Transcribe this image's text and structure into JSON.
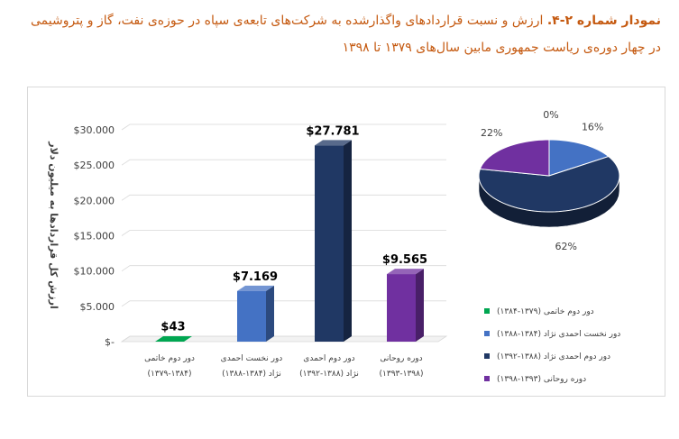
{
  "caption": {
    "label": "نمودار شماره ۲-۴.",
    "text": "ارزش و نسبت قراردادهای واگذارشده به شرکت‌های تابعه‌ی سپاه در حوزه‌ی نفت، گاز و پتروشیمی در چهار دوره‌ی ریاست جمهوری مابین سال‌های ۱۳۷۹ تا ۱۳۹۸"
  },
  "chart_data": [
    {
      "type": "bar",
      "ylabel": "ارزش کل قراردادها به میلیون دلار",
      "ylim": [
        0,
        30000
      ],
      "yticks": [
        "$-",
        "$5.000",
        "$10.000",
        "$15.000",
        "$20.000",
        "$25.000",
        "$30.000"
      ],
      "categories": [
        [
          "دور دوم خاتمی",
          "(۱۳۷۹-۱۳۸۴)"
        ],
        [
          "دور نخست احمدی",
          "نژاد (۱۳۸۴-۱۳۸۸)"
        ],
        [
          "دور دوم احمدی",
          "نژاد (۱۳۸۸-۱۳۹۲)"
        ],
        [
          "دوره روحانی",
          "(۱۳۹۳-۱۳۹۸)"
        ]
      ],
      "values": [
        43,
        7169,
        27781,
        9565
      ],
      "data_labels": [
        "$43",
        "$7.169",
        "$27.781",
        "$9.565"
      ],
      "colors": [
        "#00a651",
        "#4472c4",
        "#203864",
        "#7030a0"
      ]
    },
    {
      "type": "pie",
      "labels": [
        "دور دوم خاتمی (۱۳۷۹-۱۳۸۴)",
        "دور نخست احمدی نژاد (۱۳۸۴-۱۳۸۸)",
        "دور دوم احمدی نژاد (۱۳۸۸-۱۳۹۲)",
        "دوره روحانی (۱۳۹۳-۱۳۹۸)"
      ],
      "values": [
        0,
        16,
        62,
        22
      ],
      "data_labels": [
        "0%",
        "16%",
        "62%",
        "22%"
      ],
      "colors": [
        "#00a651",
        "#4472c4",
        "#203864",
        "#7030a0"
      ],
      "legend_position": "bottom"
    }
  ]
}
